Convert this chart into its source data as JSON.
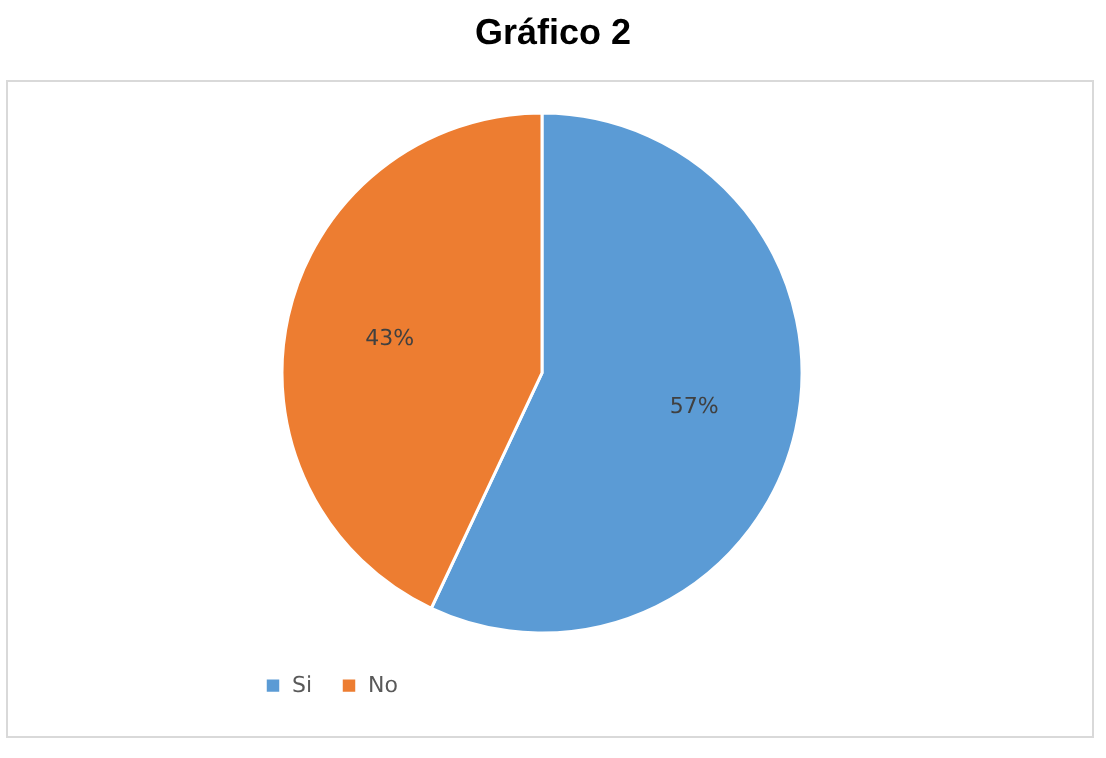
{
  "chart_data": {
    "type": "pie",
    "title": "Gráfico 2",
    "categories": [
      "Si",
      "No"
    ],
    "values": [
      57,
      43
    ],
    "colors": [
      "#5b9bd5",
      "#ed7d31"
    ],
    "value_labels": [
      "57%",
      "43%"
    ],
    "legend": "bottom"
  }
}
